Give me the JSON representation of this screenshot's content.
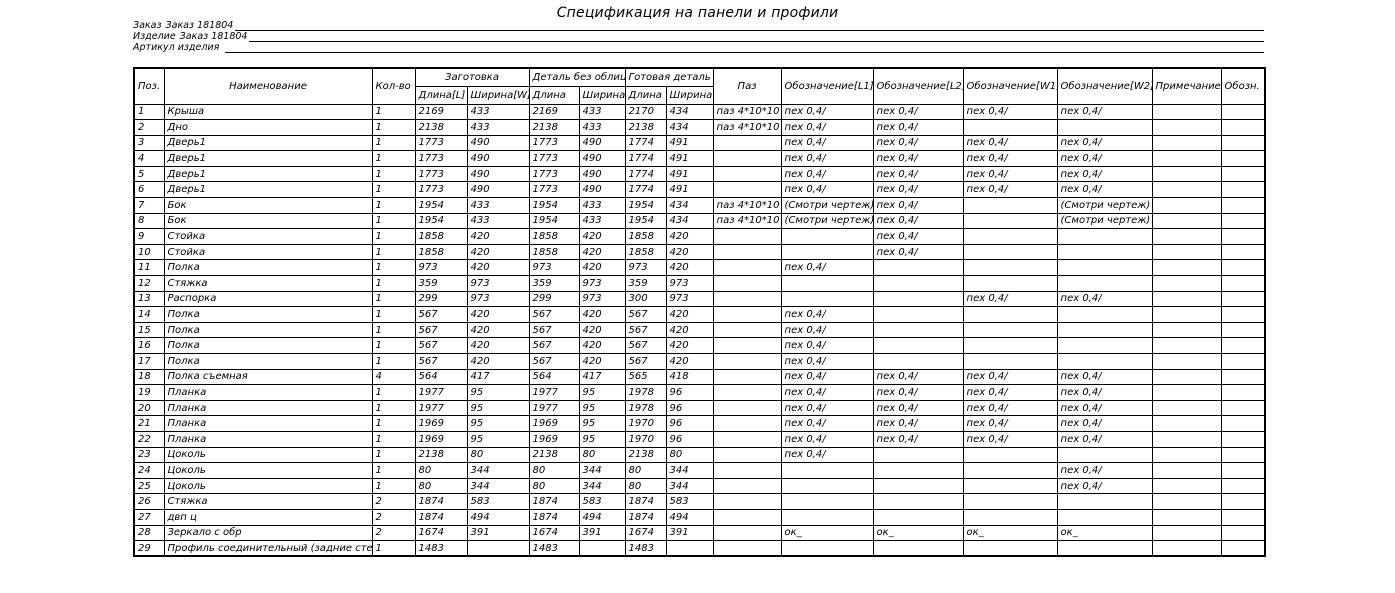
{
  "title": "Спецификация на панели и профили",
  "meta": [
    {
      "label": "Заказ",
      "value": "Заказ 181804"
    },
    {
      "label": "Изделие",
      "value": "Заказ 181804"
    },
    {
      "label": "Артикул изделия",
      "value": ""
    }
  ],
  "table": {
    "header": {
      "pos": "Поз.",
      "name": "Наименование",
      "qty": "Кол-во",
      "groups": [
        {
          "label": "Заготовка",
          "cols": [
            "Длина[L]",
            "Ширина[W]"
          ]
        },
        {
          "label": "Деталь без облиц.",
          "cols": [
            "Длина",
            "Ширина"
          ]
        },
        {
          "label": "Готовая деталь",
          "cols": [
            "Длина",
            "Ширина"
          ]
        }
      ],
      "groove": "Паз",
      "mark_l1": "Обозначение[L1]",
      "mark_l2": "Обозначение[L2]",
      "mark_w1": "Обозначение[W1]",
      "mark_w2": "Обозначение[W2]",
      "note": "Примечание",
      "designation": "Обозн."
    },
    "col_keys": [
      "pos",
      "name",
      "qty",
      "blank-length",
      "blank-width",
      "raw-length",
      "raw-width",
      "final-length",
      "final-width",
      "groove",
      "mark-l1",
      "mark-l2",
      "mark-w1",
      "mark-w2",
      "note",
      "designation"
    ],
    "rows": [
      [
        "1",
        "Крыша",
        "1",
        "2169",
        "433",
        "2169",
        "433",
        "2170",
        "434",
        "паз 4*10*10",
        "пех 0,4/",
        "пех 0,4/",
        "пех 0,4/",
        "пех 0,4/",
        "",
        ""
      ],
      [
        "2",
        "Дно",
        "1",
        "2138",
        "433",
        "2138",
        "433",
        "2138",
        "434",
        "паз 4*10*10",
        "пех 0,4/",
        "пех 0,4/",
        "",
        "",
        "",
        ""
      ],
      [
        "3",
        "Дверь1",
        "1",
        "1773",
        "490",
        "1773",
        "490",
        "1774",
        "491",
        "",
        "пех 0,4/",
        "пех 0,4/",
        "пех 0,4/",
        "пех 0,4/",
        "",
        ""
      ],
      [
        "4",
        "Дверь1",
        "1",
        "1773",
        "490",
        "1773",
        "490",
        "1774",
        "491",
        "",
        "пех 0,4/",
        "пех 0,4/",
        "пех 0,4/",
        "пех 0,4/",
        "",
        ""
      ],
      [
        "5",
        "Дверь1",
        "1",
        "1773",
        "490",
        "1773",
        "490",
        "1774",
        "491",
        "",
        "пех 0,4/",
        "пех 0,4/",
        "пех 0,4/",
        "пех 0,4/",
        "",
        ""
      ],
      [
        "6",
        "Дверь1",
        "1",
        "1773",
        "490",
        "1773",
        "490",
        "1774",
        "491",
        "",
        "пех 0,4/",
        "пех 0,4/",
        "пех 0,4/",
        "пех 0,4/",
        "",
        ""
      ],
      [
        "7",
        "Бок",
        "1",
        "1954",
        "433",
        "1954",
        "433",
        "1954",
        "434",
        "паз 4*10*10",
        "(Смотри чертеж)",
        "пех 0,4/",
        "",
        "(Смотри чертеж)",
        "",
        ""
      ],
      [
        "8",
        "Бок",
        "1",
        "1954",
        "433",
        "1954",
        "433",
        "1954",
        "434",
        "паз 4*10*10",
        "(Смотри чертеж)",
        "пех 0,4/",
        "",
        "(Смотри чертеж)",
        "",
        ""
      ],
      [
        "9",
        "Стойка",
        "1",
        "1858",
        "420",
        "1858",
        "420",
        "1858",
        "420",
        "",
        "",
        "пех 0,4/",
        "",
        "",
        "",
        ""
      ],
      [
        "10",
        "Стойка",
        "1",
        "1858",
        "420",
        "1858",
        "420",
        "1858",
        "420",
        "",
        "",
        "пех 0,4/",
        "",
        "",
        "",
        ""
      ],
      [
        "11",
        "Полка",
        "1",
        "973",
        "420",
        "973",
        "420",
        "973",
        "420",
        "",
        "пех 0,4/",
        "",
        "",
        "",
        "",
        ""
      ],
      [
        "12",
        "Стяжка",
        "1",
        "359",
        "973",
        "359",
        "973",
        "359",
        "973",
        "",
        "",
        "",
        "",
        "",
        "",
        ""
      ],
      [
        "13",
        "Распорка",
        "1",
        "299",
        "973",
        "299",
        "973",
        "300",
        "973",
        "",
        "",
        "",
        "пех 0,4/",
        "пех 0,4/",
        "",
        ""
      ],
      [
        "14",
        "Полка",
        "1",
        "567",
        "420",
        "567",
        "420",
        "567",
        "420",
        "",
        "пех 0,4/",
        "",
        "",
        "",
        "",
        ""
      ],
      [
        "15",
        "Полка",
        "1",
        "567",
        "420",
        "567",
        "420",
        "567",
        "420",
        "",
        "пех 0,4/",
        "",
        "",
        "",
        "",
        ""
      ],
      [
        "16",
        "Полка",
        "1",
        "567",
        "420",
        "567",
        "420",
        "567",
        "420",
        "",
        "пех 0,4/",
        "",
        "",
        "",
        "",
        ""
      ],
      [
        "17",
        "Полка",
        "1",
        "567",
        "420",
        "567",
        "420",
        "567",
        "420",
        "",
        "пех 0,4/",
        "",
        "",
        "",
        "",
        ""
      ],
      [
        "18",
        "Полка съемная",
        "4",
        "564",
        "417",
        "564",
        "417",
        "565",
        "418",
        "",
        "пех 0,4/",
        "пех 0,4/",
        "пех 0,4/",
        "пех 0,4/",
        "",
        ""
      ],
      [
        "19",
        "Планка",
        "1",
        "1977",
        "95",
        "1977",
        "95",
        "1978",
        "96",
        "",
        "пех 0,4/",
        "пех 0,4/",
        "пех 0,4/",
        "пех 0,4/",
        "",
        ""
      ],
      [
        "20",
        "Планка",
        "1",
        "1977",
        "95",
        "1977",
        "95",
        "1978",
        "96",
        "",
        "пех 0,4/",
        "пех 0,4/",
        "пех 0,4/",
        "пех 0,4/",
        "",
        ""
      ],
      [
        "21",
        "Планка",
        "1",
        "1969",
        "95",
        "1969",
        "95",
        "1970",
        "96",
        "",
        "пех 0,4/",
        "пех 0,4/",
        "пех 0,4/",
        "пех 0,4/",
        "",
        ""
      ],
      [
        "22",
        "Планка",
        "1",
        "1969",
        "95",
        "1969",
        "95",
        "1970",
        "96",
        "",
        "пех 0,4/",
        "пех 0,4/",
        "пех 0,4/",
        "пех 0,4/",
        "",
        ""
      ],
      [
        "23",
        "Цоколь",
        "1",
        "2138",
        "80",
        "2138",
        "80",
        "2138",
        "80",
        "",
        "пех 0,4/",
        "",
        "",
        "",
        "",
        ""
      ],
      [
        "24",
        "Цоколь",
        "1",
        "80",
        "344",
        "80",
        "344",
        "80",
        "344",
        "",
        "",
        "",
        "",
        "пех 0,4/",
        "",
        ""
      ],
      [
        "25",
        "Цоколь",
        "1",
        "80",
        "344",
        "80",
        "344",
        "80",
        "344",
        "",
        "",
        "",
        "",
        "пех 0,4/",
        "",
        ""
      ],
      [
        "26",
        "Стяжка",
        "2",
        "1874",
        "583",
        "1874",
        "583",
        "1874",
        "583",
        "",
        "",
        "",
        "",
        "",
        "",
        ""
      ],
      [
        "27",
        "двп ц",
        "2",
        "1874",
        "494",
        "1874",
        "494",
        "1874",
        "494",
        "",
        "",
        "",
        "",
        "",
        "",
        ""
      ],
      [
        "28",
        "Зеркало с обр",
        "2",
        "1674",
        "391",
        "1674",
        "391",
        "1674",
        "391",
        "",
        "ок_",
        "ок_",
        "ок_",
        "ок_",
        "",
        ""
      ],
      [
        "29",
        "Профиль соединительный (задние стенки)",
        "1",
        "1483",
        "",
        "1483",
        "",
        "1483",
        "",
        "",
        "",
        "",
        "",
        "",
        "",
        ""
      ]
    ]
  }
}
